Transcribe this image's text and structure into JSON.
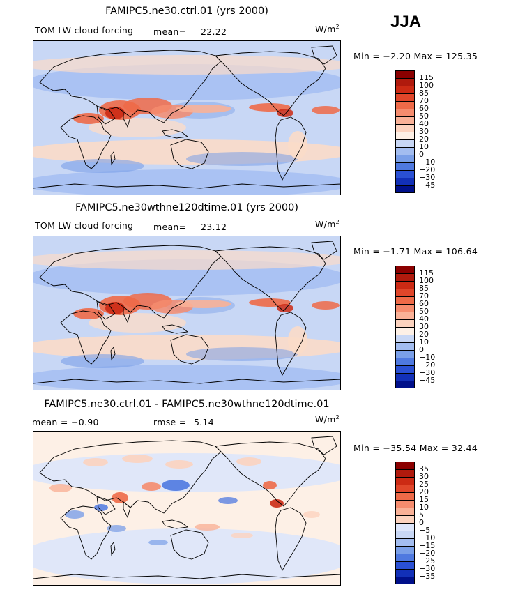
{
  "season": "JJA",
  "panels": [
    {
      "title": "FAMIPC5.ne30.ctrl.01 (yrs 2000)",
      "left_label": "TOM LW cloud forcing",
      "stat_label": "mean=",
      "stat_value": "22.22",
      "unit": "W/m",
      "unit_exp": "2",
      "minmax": "Min =  −2.20 Max = 125.35",
      "field": "absolute"
    },
    {
      "title": "FAMIPC5.ne30wthne120dtime.01 (yrs 2000)",
      "left_label": "TOM LW cloud forcing",
      "stat_label": "mean=",
      "stat_value": "23.12",
      "unit": "W/m",
      "unit_exp": "2",
      "minmax": "Min =  −1.71 Max = 106.64",
      "field": "absolute"
    },
    {
      "title": "FAMIPC5.ne30.ctrl.01 - FAMIPC5.ne30wthne120dtime.01",
      "left_label": "mean =   −0.90",
      "stat_label": "rmse =",
      "stat_value": "5.14",
      "unit": "W/m",
      "unit_exp": "2",
      "minmax": "Min = −35.54 Max =  32.44",
      "field": "difference"
    }
  ],
  "colorbar_abs": {
    "levels": [
      "115",
      "100",
      "85",
      "70",
      "60",
      "50",
      "40",
      "30",
      "20",
      "10",
      "0",
      "−10",
      "−20",
      "−30",
      "−45"
    ],
    "colors": [
      "#8b0000",
      "#b01a0d",
      "#cc2a14",
      "#e0462a",
      "#ee6a48",
      "#f58c6e",
      "#f9b197",
      "#fcd3bf",
      "#fdf0e6",
      "#c8d7f5",
      "#a3bdf0",
      "#7a9fe8",
      "#4f79e0",
      "#2a50d4",
      "#1230b8",
      "#00108a"
    ]
  },
  "colorbar_diff": {
    "levels": [
      "35",
      "30",
      "25",
      "20",
      "15",
      "10",
      "5",
      "0",
      "−5",
      "−10",
      "−15",
      "−20",
      "−25",
      "−30",
      "−35"
    ],
    "colors": [
      "#8b0000",
      "#b01a0d",
      "#cc2a14",
      "#e0462a",
      "#ee6a48",
      "#f58c6e",
      "#f9b197",
      "#fcd3bf",
      "#dde6fb",
      "#c8d7f5",
      "#a3bdf0",
      "#7a9fe8",
      "#4f79e0",
      "#2a50d4",
      "#1230b8",
      "#00108a"
    ]
  }
}
